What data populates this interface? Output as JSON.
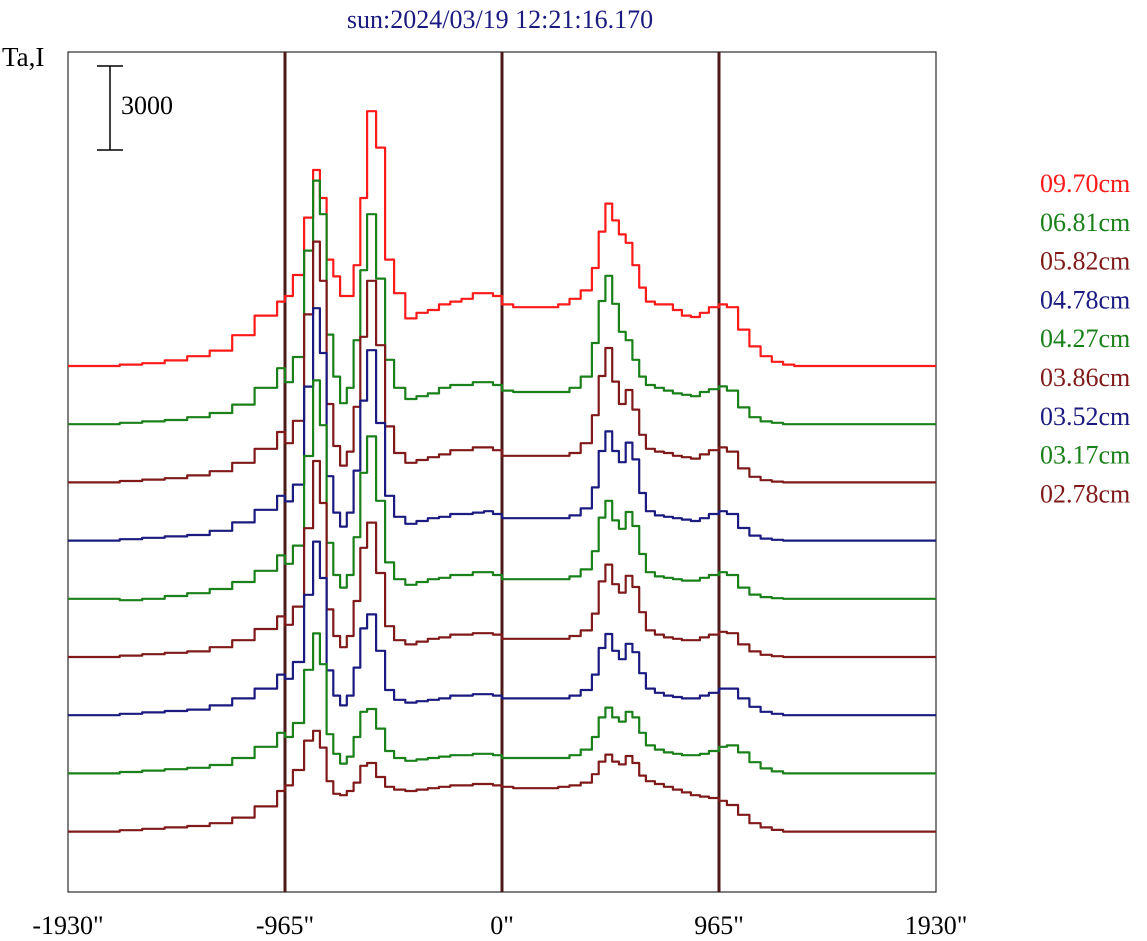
{
  "chart_data": {
    "type": "line",
    "title": "sun:2024/03/19 12:21:16.170",
    "ylabel": "Ta,I",
    "scale_bar_label": "3000",
    "x_ticks": [
      "-1930\"",
      "-965\"",
      "0\"",
      "965\"",
      "1930\""
    ],
    "xlim": [
      -1930,
      1930
    ],
    "vertical_lines": [
      -965,
      0,
      965
    ],
    "legend_position": "right",
    "x": [
      -1930,
      -1800,
      -1700,
      -1600,
      -1500,
      -1400,
      -1300,
      -1200,
      -1100,
      -1000,
      -965,
      -930,
      -880,
      -840,
      -810,
      -780,
      -750,
      -720,
      -690,
      -660,
      -630,
      -600,
      -560,
      -520,
      -480,
      -430,
      -380,
      -330,
      -280,
      -230,
      -180,
      -130,
      -80,
      -40,
      0,
      50,
      100,
      150,
      200,
      250,
      300,
      350,
      400,
      430,
      460,
      490,
      520,
      550,
      580,
      610,
      640,
      680,
      720,
      760,
      800,
      840,
      880,
      920,
      965,
      1000,
      1050,
      1100,
      1150,
      1200,
      1250,
      1300,
      1400,
      1500,
      1600,
      1700,
      1800,
      1930
    ],
    "series": [
      {
        "name": "09.70cm",
        "color": "#ff1a1a",
        "values": [
          0,
          0,
          50,
          100,
          200,
          350,
          550,
          1100,
          1800,
          2300,
          2500,
          3250,
          5300,
          7000,
          6000,
          3800,
          3200,
          2500,
          2500,
          3600,
          6000,
          9100,
          7800,
          3800,
          2600,
          1700,
          1900,
          2000,
          2200,
          2300,
          2400,
          2600,
          2600,
          2500,
          2200,
          2100,
          2100,
          2100,
          2100,
          2200,
          2400,
          2700,
          3500,
          4800,
          5800,
          5200,
          4700,
          4400,
          3600,
          2800,
          2300,
          2200,
          2200,
          2000,
          1800,
          1750,
          1900,
          2100,
          2200,
          2100,
          1300,
          700,
          350,
          150,
          50,
          0,
          0,
          0,
          0,
          0,
          0,
          0
        ]
      },
      {
        "name": "06.81cm",
        "color": "#1a801a",
        "values": [
          0,
          0,
          50,
          100,
          150,
          250,
          400,
          700,
          1300,
          2000,
          1500,
          2400,
          6200,
          8700,
          7500,
          3200,
          1700,
          750,
          1300,
          3000,
          5500,
          7500,
          5200,
          2300,
          1300,
          900,
          1000,
          1100,
          1300,
          1400,
          1400,
          1500,
          1500,
          1400,
          1200,
          1150,
          1150,
          1150,
          1150,
          1150,
          1300,
          1700,
          2900,
          4400,
          5300,
          4300,
          3300,
          3000,
          2300,
          1700,
          1400,
          1300,
          1200,
          1100,
          1050,
          1000,
          1150,
          1250,
          1350,
          1200,
          600,
          250,
          100,
          50,
          0,
          0,
          0,
          0,
          0,
          0,
          0,
          0
        ]
      },
      {
        "name": "05.82cm",
        "color": "#801a1a",
        "values": [
          0,
          0,
          50,
          100,
          150,
          250,
          400,
          700,
          1200,
          1800,
          1400,
          2200,
          6000,
          8600,
          7200,
          2800,
          1300,
          600,
          1100,
          2700,
          5200,
          7200,
          4900,
          2000,
          1050,
          700,
          800,
          900,
          1000,
          1150,
          1150,
          1250,
          1250,
          1150,
          950,
          950,
          950,
          950,
          950,
          950,
          1050,
          1400,
          2400,
          3800,
          4800,
          3600,
          2800,
          3300,
          2600,
          1700,
          1200,
          1100,
          1050,
          950,
          900,
          850,
          1000,
          1150,
          1250,
          1100,
          500,
          200,
          80,
          30,
          0,
          0,
          0,
          0,
          0,
          0,
          0,
          0
        ]
      },
      {
        "name": "04.78cm",
        "color": "#1a1a80",
        "values": [
          0,
          0,
          50,
          100,
          150,
          200,
          350,
          650,
          1100,
          1600,
          1400,
          2000,
          5500,
          8300,
          6700,
          2300,
          1000,
          500,
          1000,
          2500,
          5000,
          6800,
          4200,
          1600,
          850,
          600,
          700,
          800,
          850,
          950,
          950,
          1000,
          1050,
          950,
          800,
          800,
          800,
          800,
          800,
          800,
          900,
          1150,
          1900,
          3200,
          3900,
          3200,
          2800,
          3500,
          2900,
          1700,
          1050,
          900,
          850,
          800,
          750,
          700,
          800,
          950,
          1050,
          950,
          450,
          180,
          70,
          30,
          0,
          0,
          0,
          0,
          0,
          0,
          0,
          0
        ]
      },
      {
        "name": "04.27cm",
        "color": "#1a801a",
        "values": [
          0,
          0,
          -50,
          0,
          100,
          200,
          350,
          600,
          1000,
          1550,
          1250,
          1900,
          5100,
          7800,
          6200,
          2000,
          850,
          400,
          850,
          2200,
          4500,
          5800,
          3500,
          1300,
          700,
          500,
          600,
          700,
          750,
          850,
          850,
          950,
          950,
          850,
          700,
          700,
          700,
          700,
          700,
          700,
          800,
          1050,
          1700,
          2900,
          3500,
          2800,
          2500,
          3100,
          2600,
          1600,
          950,
          800,
          750,
          700,
          650,
          650,
          750,
          850,
          950,
          850,
          400,
          150,
          60,
          20,
          0,
          0,
          0,
          0,
          0,
          0,
          0,
          0
        ]
      },
      {
        "name": "03.86cm",
        "color": "#801a1a",
        "values": [
          0,
          0,
          50,
          100,
          150,
          200,
          350,
          600,
          1000,
          1450,
          1150,
          1800,
          4600,
          7000,
          5500,
          1700,
          750,
          350,
          750,
          2000,
          3900,
          4800,
          3000,
          1100,
          600,
          450,
          550,
          650,
          700,
          800,
          800,
          850,
          850,
          800,
          650,
          650,
          650,
          650,
          650,
          650,
          750,
          950,
          1550,
          2700,
          3300,
          2600,
          2300,
          2900,
          2500,
          1600,
          950,
          800,
          700,
          650,
          600,
          600,
          700,
          800,
          900,
          850,
          450,
          200,
          80,
          30,
          0,
          0,
          0,
          0,
          0,
          0,
          0,
          0
        ]
      },
      {
        "name": "03.52cm",
        "color": "#1a1a80",
        "values": [
          0,
          0,
          50,
          100,
          150,
          200,
          350,
          600,
          950,
          1450,
          1300,
          1900,
          4300,
          6200,
          4900,
          1600,
          700,
          350,
          700,
          1700,
          3100,
          3600,
          2300,
          900,
          550,
          450,
          500,
          550,
          600,
          700,
          700,
          750,
          750,
          700,
          600,
          600,
          600,
          600,
          600,
          600,
          700,
          900,
          1450,
          2400,
          2900,
          2300,
          2000,
          2550,
          2250,
          1500,
          950,
          800,
          700,
          650,
          600,
          600,
          700,
          800,
          950,
          950,
          600,
          300,
          120,
          50,
          0,
          0,
          0,
          0,
          0,
          0,
          0,
          0
        ]
      },
      {
        "name": "03.17cm",
        "color": "#1a801a",
        "values": [
          0,
          0,
          50,
          100,
          150,
          200,
          300,
          550,
          950,
          1450,
          1300,
          1800,
          3700,
          5000,
          3900,
          1400,
          700,
          350,
          600,
          1300,
          2200,
          2300,
          1600,
          800,
          550,
          450,
          500,
          550,
          600,
          650,
          650,
          700,
          700,
          650,
          550,
          550,
          550,
          550,
          550,
          550,
          650,
          850,
          1300,
          2000,
          2350,
          2000,
          1850,
          2200,
          2000,
          1450,
          1000,
          850,
          750,
          700,
          650,
          650,
          700,
          800,
          950,
          1000,
          750,
          400,
          180,
          70,
          0,
          0,
          0,
          0,
          0,
          0,
          0,
          0
        ]
      },
      {
        "name": "02.78cm",
        "color": "#801a1a",
        "values": [
          0,
          0,
          50,
          100,
          150,
          200,
          300,
          500,
          900,
          1450,
          1650,
          2200,
          3250,
          3600,
          3000,
          1800,
          1350,
          1300,
          1450,
          1750,
          2350,
          2450,
          1950,
          1600,
          1500,
          1450,
          1500,
          1550,
          1600,
          1650,
          1650,
          1700,
          1700,
          1650,
          1600,
          1550,
          1550,
          1550,
          1550,
          1600,
          1650,
          1750,
          2050,
          2500,
          2750,
          2500,
          2400,
          2700,
          2450,
          2000,
          1800,
          1700,
          1600,
          1500,
          1400,
          1300,
          1250,
          1200,
          1100,
          950,
          600,
          300,
          150,
          60,
          0,
          0,
          0,
          0,
          0,
          0,
          0,
          0
        ]
      }
    ]
  },
  "colors": {
    "frame": "#000000",
    "vertical_line": "#4d1a1a",
    "title": "#1a1a80"
  }
}
